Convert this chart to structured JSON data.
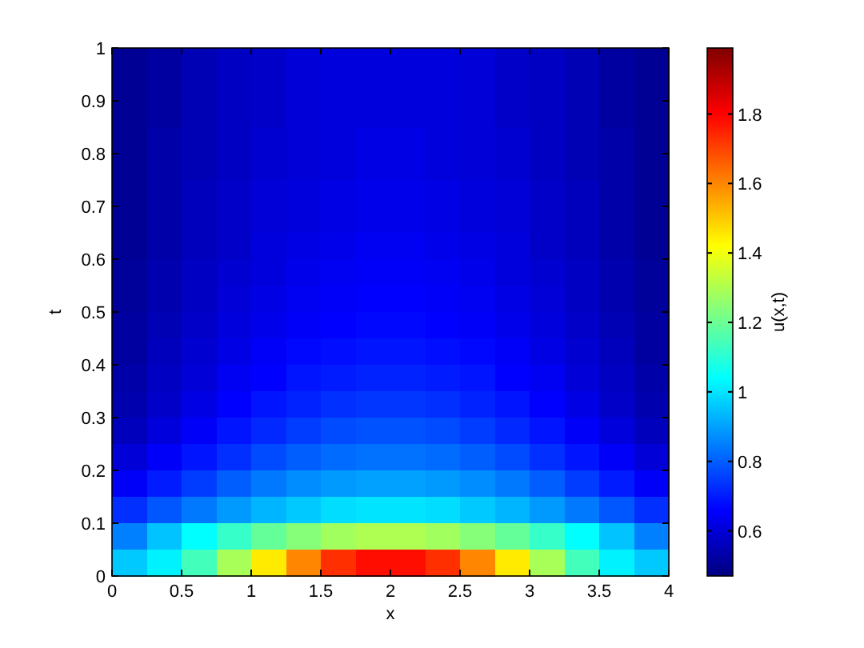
{
  "chart_data": {
    "type": "heatmap",
    "xlabel": "x",
    "ylabel": "t",
    "clabel": "u(x,t)",
    "x": [
      0.125,
      0.375,
      0.625,
      0.875,
      1.125,
      1.375,
      1.625,
      1.875,
      2.125,
      2.375,
      2.625,
      2.875,
      3.125,
      3.375,
      3.625,
      3.875
    ],
    "y": [
      0.975,
      0.925,
      0.875,
      0.825,
      0.775,
      0.725,
      0.675,
      0.625,
      0.575,
      0.525,
      0.475,
      0.425,
      0.375,
      0.325,
      0.275,
      0.225,
      0.175,
      0.125,
      0.075,
      0.025
    ],
    "xlim": [
      0,
      4
    ],
    "xticks": [
      0,
      0.5,
      1,
      1.5,
      2,
      2.5,
      3,
      3.5,
      4
    ],
    "ylim": [
      0,
      1
    ],
    "yticks": [
      0,
      0.1,
      0.2,
      0.3,
      0.4,
      0.5,
      0.6,
      0.7,
      0.8,
      0.9,
      1
    ],
    "clim": [
      0.47,
      1.99
    ],
    "cticks": [
      0.6,
      0.8,
      1,
      1.2,
      1.4,
      1.6,
      1.8
    ],
    "cells": [
      [
        0.5,
        0.52,
        0.55,
        0.57,
        0.58,
        0.6,
        0.61,
        0.61,
        0.61,
        0.61,
        0.6,
        0.58,
        0.57,
        0.55,
        0.52,
        0.5
      ],
      [
        0.5,
        0.52,
        0.55,
        0.57,
        0.58,
        0.6,
        0.61,
        0.61,
        0.61,
        0.61,
        0.6,
        0.58,
        0.57,
        0.55,
        0.52,
        0.5
      ],
      [
        0.5,
        0.52,
        0.55,
        0.57,
        0.58,
        0.6,
        0.61,
        0.61,
        0.61,
        0.61,
        0.6,
        0.58,
        0.57,
        0.55,
        0.52,
        0.5
      ],
      [
        0.5,
        0.53,
        0.55,
        0.57,
        0.59,
        0.6,
        0.61,
        0.62,
        0.62,
        0.61,
        0.6,
        0.59,
        0.57,
        0.55,
        0.53,
        0.5
      ],
      [
        0.5,
        0.53,
        0.55,
        0.57,
        0.59,
        0.6,
        0.61,
        0.62,
        0.62,
        0.61,
        0.6,
        0.59,
        0.57,
        0.55,
        0.53,
        0.5
      ],
      [
        0.5,
        0.53,
        0.56,
        0.58,
        0.6,
        0.61,
        0.62,
        0.63,
        0.63,
        0.62,
        0.61,
        0.6,
        0.58,
        0.56,
        0.53,
        0.5
      ],
      [
        0.5,
        0.53,
        0.56,
        0.58,
        0.6,
        0.61,
        0.62,
        0.63,
        0.63,
        0.62,
        0.61,
        0.6,
        0.58,
        0.56,
        0.53,
        0.5
      ],
      [
        0.5,
        0.53,
        0.56,
        0.58,
        0.61,
        0.62,
        0.63,
        0.64,
        0.64,
        0.63,
        0.62,
        0.61,
        0.58,
        0.56,
        0.53,
        0.5
      ],
      [
        0.51,
        0.54,
        0.57,
        0.59,
        0.61,
        0.63,
        0.64,
        0.65,
        0.65,
        0.64,
        0.63,
        0.61,
        0.59,
        0.57,
        0.54,
        0.51
      ],
      [
        0.51,
        0.54,
        0.57,
        0.6,
        0.62,
        0.64,
        0.65,
        0.66,
        0.66,
        0.65,
        0.64,
        0.62,
        0.6,
        0.57,
        0.54,
        0.51
      ],
      [
        0.52,
        0.55,
        0.58,
        0.61,
        0.63,
        0.65,
        0.66,
        0.67,
        0.67,
        0.66,
        0.65,
        0.63,
        0.61,
        0.58,
        0.55,
        0.52
      ],
      [
        0.52,
        0.56,
        0.59,
        0.62,
        0.65,
        0.67,
        0.68,
        0.69,
        0.69,
        0.68,
        0.67,
        0.65,
        0.62,
        0.59,
        0.56,
        0.52
      ],
      [
        0.53,
        0.57,
        0.6,
        0.64,
        0.66,
        0.69,
        0.7,
        0.71,
        0.71,
        0.7,
        0.69,
        0.66,
        0.64,
        0.6,
        0.57,
        0.53
      ],
      [
        0.54,
        0.58,
        0.62,
        0.66,
        0.69,
        0.71,
        0.73,
        0.74,
        0.74,
        0.73,
        0.71,
        0.69,
        0.66,
        0.62,
        0.58,
        0.54
      ],
      [
        0.56,
        0.61,
        0.65,
        0.69,
        0.72,
        0.75,
        0.77,
        0.78,
        0.78,
        0.77,
        0.75,
        0.72,
        0.69,
        0.65,
        0.61,
        0.56
      ],
      [
        0.6,
        0.65,
        0.69,
        0.73,
        0.77,
        0.8,
        0.82,
        0.83,
        0.83,
        0.82,
        0.8,
        0.77,
        0.73,
        0.69,
        0.65,
        0.6
      ],
      [
        0.65,
        0.7,
        0.75,
        0.8,
        0.84,
        0.87,
        0.89,
        0.9,
        0.9,
        0.89,
        0.87,
        0.84,
        0.8,
        0.75,
        0.7,
        0.65
      ],
      [
        0.73,
        0.79,
        0.84,
        0.89,
        0.93,
        0.96,
        0.99,
        1.0,
        1.0,
        0.99,
        0.96,
        0.93,
        0.89,
        0.84,
        0.79,
        0.73
      ],
      [
        0.85,
        0.95,
        1.04,
        1.12,
        1.19,
        1.24,
        1.28,
        1.3,
        1.3,
        1.28,
        1.24,
        1.19,
        1.12,
        1.04,
        0.95,
        0.85
      ],
      [
        0.96,
        1.02,
        1.14,
        1.29,
        1.45,
        1.6,
        1.73,
        1.78,
        1.78,
        1.73,
        1.6,
        1.45,
        1.29,
        1.14,
        1.02,
        0.96
      ]
    ]
  }
}
